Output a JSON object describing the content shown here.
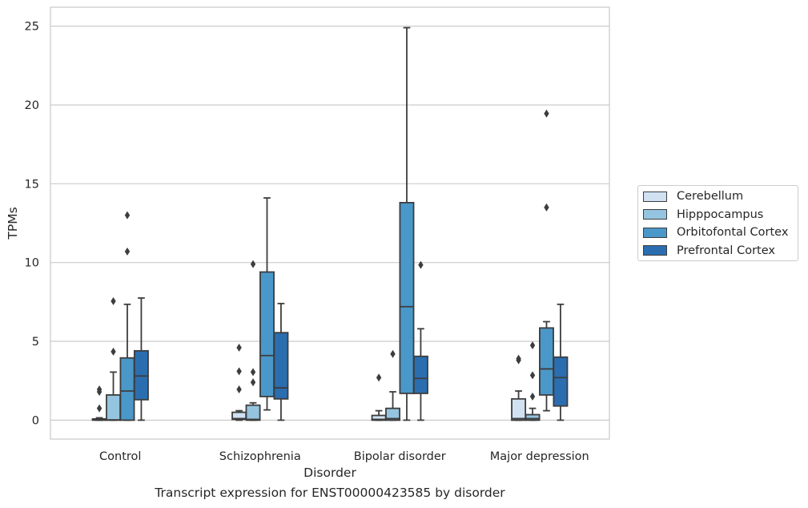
{
  "chart_data": {
    "type": "box",
    "xlabel": "Disorder",
    "ylabel": "TPMs",
    "caption": "Transcript expression for ENST00000423585 by disorder",
    "ylim": [
      -1.2,
      26.2
    ],
    "yticks": [
      0,
      5,
      10,
      15,
      20,
      25
    ],
    "grid": "horizontal",
    "legend_position": "right",
    "categories": [
      "Control",
      "Schizophrenia",
      "Bipolar disorder",
      "Major depression"
    ],
    "series": [
      {
        "name": "Cerebellum",
        "color": "#d0e1f2",
        "boxes": [
          {
            "whislo": 0,
            "q1": 0,
            "median": 0.02,
            "q3": 0.08,
            "whishi": 0.15,
            "fliers": [
              0.75,
              1.8,
              1.95
            ]
          },
          {
            "whislo": 0,
            "q1": 0.05,
            "median": 0.1,
            "q3": 0.5,
            "whishi": 0.6,
            "fliers": [
              1.95,
              3.1,
              4.6
            ]
          },
          {
            "whislo": 0,
            "q1": 0,
            "median": 0.05,
            "q3": 0.3,
            "whishi": 0.6,
            "fliers": [
              2.7
            ]
          },
          {
            "whislo": 0,
            "q1": 0,
            "median": 0.1,
            "q3": 1.35,
            "whishi": 1.85,
            "fliers": [
              3.8,
              3.9
            ]
          }
        ]
      },
      {
        "name": "Hipppocampus",
        "color": "#94c4df",
        "boxes": [
          {
            "whislo": 0,
            "q1": 0,
            "median": 0.02,
            "q3": 1.6,
            "whishi": 3.05,
            "fliers": [
              4.35,
              7.55
            ]
          },
          {
            "whislo": 0,
            "q1": 0,
            "median": 0.05,
            "q3": 0.95,
            "whishi": 1.1,
            "fliers": [
              2.4,
              3.05,
              9.9
            ]
          },
          {
            "whislo": 0,
            "q1": 0,
            "median": 0.1,
            "q3": 0.75,
            "whishi": 1.8,
            "fliers": [
              4.2
            ]
          },
          {
            "whislo": 0,
            "q1": 0,
            "median": 0.1,
            "q3": 0.35,
            "whishi": 0.75,
            "fliers": [
              1.5,
              2.85,
              4.75
            ]
          }
        ]
      },
      {
        "name": "Orbitofontal Cortex",
        "color": "#4a98c9",
        "boxes": [
          {
            "whislo": 0,
            "q1": 0,
            "median": 1.85,
            "q3": 3.95,
            "whishi": 7.35,
            "fliers": [
              10.7,
              13.0
            ]
          },
          {
            "whislo": 0.65,
            "q1": 1.5,
            "median": 4.1,
            "q3": 9.4,
            "whishi": 14.1,
            "fliers": []
          },
          {
            "whislo": 0,
            "q1": 1.7,
            "median": 7.2,
            "q3": 13.8,
            "whishi": 24.9,
            "fliers": []
          },
          {
            "whislo": 0.6,
            "q1": 1.6,
            "median": 3.25,
            "q3": 5.85,
            "whishi": 6.25,
            "fliers": [
              13.5,
              19.45
            ]
          }
        ]
      },
      {
        "name": "Prefrontal Cortex",
        "color": "#2a6eb0",
        "boxes": [
          {
            "whislo": 0,
            "q1": 1.3,
            "median": 2.8,
            "q3": 4.4,
            "whishi": 7.75,
            "fliers": []
          },
          {
            "whislo": 0,
            "q1": 1.35,
            "median": 2.05,
            "q3": 5.55,
            "whishi": 7.4,
            "fliers": []
          },
          {
            "whislo": 0,
            "q1": 1.7,
            "median": 2.65,
            "q3": 4.05,
            "whishi": 5.8,
            "fliers": [
              9.85
            ]
          },
          {
            "whislo": 0,
            "q1": 0.9,
            "median": 2.7,
            "q3": 4.0,
            "whishi": 7.35,
            "fliers": []
          }
        ]
      }
    ]
  }
}
